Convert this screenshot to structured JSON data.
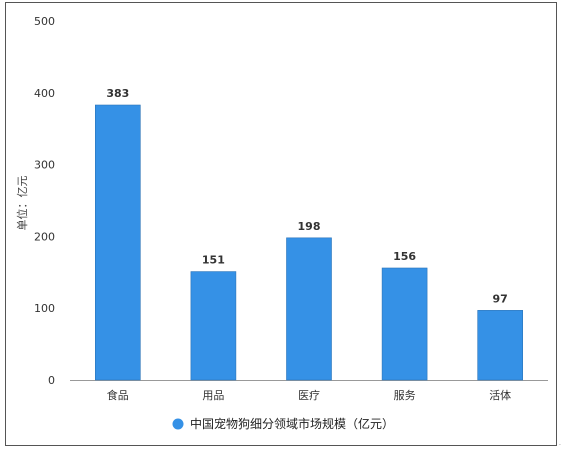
{
  "chart_data": {
    "type": "bar",
    "categories": [
      "食品",
      "用品",
      "医疗",
      "服务",
      "活体"
    ],
    "series": [
      {
        "name": "中国宠物狗细分领域市场规模（亿元）",
        "values": [
          383,
          151,
          198,
          156,
          97
        ]
      }
    ],
    "ylabel": "单位：亿元",
    "xlabel": "",
    "ylim": [
      0,
      500
    ],
    "yticks": [
      0,
      100,
      200,
      300,
      400,
      500
    ],
    "grid": false,
    "legend": "bottom",
    "data_labels": true,
    "colors": {
      "bar": "#3591e6",
      "bar_edge": "#2a73b8",
      "legend_marker": "#3591e6",
      "axis": "#999999"
    }
  }
}
